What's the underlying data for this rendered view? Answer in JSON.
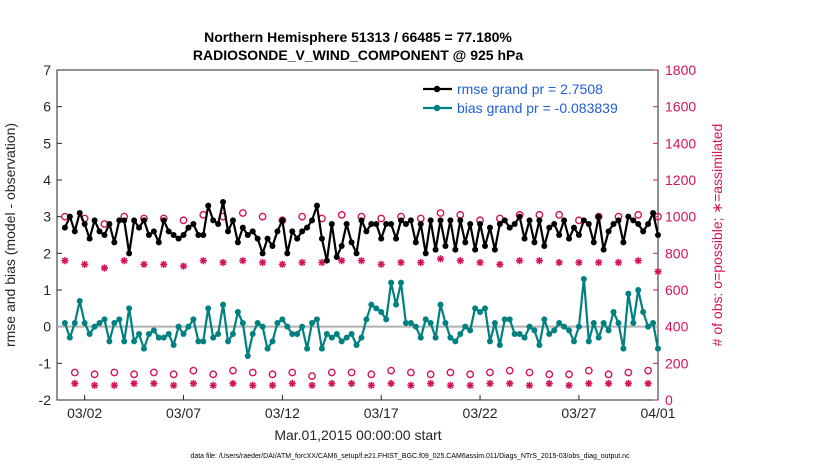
{
  "chart_data": {
    "type": "line",
    "title": "Northern Hemisphere 51313 / 66485 = 77.180%",
    "subtitle": "RADIOSONDE_V_WIND_COMPONENT @ 925 hPa",
    "xlabel": "Mar.01,2015 00:00:00 start",
    "ylabel_left": "rmse and bias (model - observation)",
    "ylabel_right": "# of obs: o=possible; ∗=assimilated",
    "footnote": "data file: /Users/raeder/DAI/ATM_forcXX/CAM6_setup/f.e21.FHIST_BGC.f09_025.CAM6assim.011/Diags_NTrS_2015-03/obs_diag_output.nc",
    "xlim": [
      0.6,
      31.0
    ],
    "ylim_left": [
      -2,
      7
    ],
    "ylim_right": [
      0,
      1800
    ],
    "yticks_left": [
      "-2",
      "-1",
      "0",
      "1",
      "2",
      "3",
      "4",
      "5",
      "6",
      "7"
    ],
    "yticks_right": [
      "0",
      "200",
      "400",
      "600",
      "800",
      "1000",
      "1200",
      "1400",
      "1600",
      "1800"
    ],
    "xticks": [
      {
        "pos": 2,
        "label": "03/02"
      },
      {
        "pos": 7,
        "label": "03/07"
      },
      {
        "pos": 12,
        "label": "03/12"
      },
      {
        "pos": 17,
        "label": "03/17"
      },
      {
        "pos": 22,
        "label": "03/22"
      },
      {
        "pos": 27,
        "label": "03/27"
      },
      {
        "pos": 32,
        "label": "04/01"
      }
    ],
    "reference_line": 0,
    "legend": [
      {
        "label": "rmse grand pr = 2.7508",
        "color": "#000000"
      },
      {
        "label": "bias grand pr = -0.083839",
        "color": "#008080"
      }
    ],
    "colors": {
      "rmse": "#000000",
      "bias": "#008080",
      "obs": "#d4145a",
      "zero": "#b0b0b0"
    },
    "series": [
      {
        "name": "rmse",
        "x_start": 1.0,
        "x_step": 0.25,
        "values": [
          2.7,
          3.0,
          2.6,
          3.1,
          2.8,
          2.4,
          2.9,
          2.6,
          2.5,
          2.8,
          2.3,
          2.9,
          2.9,
          2.0,
          2.9,
          2.7,
          2.9,
          2.5,
          2.6,
          2.3,
          2.9,
          2.6,
          2.5,
          2.4,
          2.5,
          2.7,
          2.8,
          2.5,
          2.5,
          3.3,
          2.9,
          2.8,
          3.4,
          2.6,
          2.9,
          2.3,
          2.7,
          2.5,
          2.6,
          2.4,
          2.0,
          2.4,
          2.2,
          2.6,
          2.9,
          2.0,
          2.6,
          2.4,
          2.6,
          2.7,
          2.9,
          3.3,
          2.4,
          1.8,
          2.8,
          1.9,
          2.2,
          2.8,
          2.3,
          2.0,
          2.9,
          2.6,
          2.8,
          2.8,
          2.4,
          2.8,
          2.8,
          2.4,
          2.9,
          2.8,
          2.9,
          2.3,
          2.8,
          2.0,
          2.9,
          2.1,
          2.9,
          2.2,
          2.9,
          2.1,
          2.9,
          2.3,
          2.8,
          2.1,
          2.8,
          2.2,
          2.7,
          2.1,
          2.8,
          2.9,
          2.7,
          2.8,
          3.0,
          2.4,
          2.9,
          2.3,
          2.9,
          2.2,
          2.7,
          2.8,
          2.5,
          2.9,
          2.4,
          2.7,
          2.5,
          2.9,
          2.8,
          2.3,
          3.0,
          2.1,
          2.6,
          2.8,
          2.9,
          2.3,
          3.0,
          2.9,
          2.8,
          2.6,
          2.8,
          3.1,
          2.5,
          2.6
        ]
      },
      {
        "name": "bias",
        "x_start": 1.0,
        "x_step": 0.25,
        "values": [
          0.1,
          -0.3,
          0.1,
          0.7,
          0.1,
          -0.2,
          0.0,
          0.1,
          0.2,
          -0.4,
          0.1,
          0.2,
          -0.4,
          0.5,
          -0.4,
          -0.2,
          -0.6,
          -0.2,
          -0.1,
          -0.3,
          -0.3,
          -0.2,
          -0.5,
          0.0,
          -0.2,
          0.0,
          0.2,
          -0.4,
          -0.4,
          0.5,
          -0.3,
          -0.2,
          0.6,
          -0.4,
          -0.2,
          0.4,
          0.1,
          -0.8,
          -0.2,
          0.1,
          0.0,
          -0.6,
          -0.4,
          0.1,
          0.2,
          0.0,
          -0.2,
          -0.2,
          0.0,
          -0.6,
          0.1,
          0.2,
          -0.6,
          -0.2,
          -0.3,
          -0.2,
          -0.4,
          -0.3,
          -0.2,
          -0.5,
          -0.3,
          0.2,
          0.6,
          0.5,
          0.4,
          0.2,
          1.2,
          0.6,
          1.2,
          0.1,
          0.1,
          0.0,
          -0.3,
          0.2,
          0.1,
          -0.3,
          0.6,
          0.1,
          -0.3,
          -0.4,
          -0.2,
          0.0,
          -0.1,
          0.5,
          0.4,
          0.5,
          -0.4,
          0.1,
          -0.5,
          0.2,
          0.2,
          -0.2,
          -0.2,
          -0.3,
          0.0,
          -0.1,
          -0.5,
          0.2,
          -0.2,
          -0.1,
          0.1,
          0.0,
          -0.1,
          -0.4,
          0.0,
          1.3,
          -0.4,
          0.1,
          -0.3,
          0.1,
          -0.1,
          0.4,
          0.1,
          -0.6,
          0.9,
          0.1,
          1.0,
          0.4,
          0.0,
          0.1,
          -0.6,
          -0.9
        ]
      },
      {
        "name": "obs_possible",
        "x_start": 1.0,
        "x_step": 0.5,
        "values": [
          1000,
          150,
          990,
          140,
          960,
          150,
          1000,
          140,
          990,
          150,
          990,
          140,
          980,
          160,
          1010,
          140,
          1000,
          160,
          1020,
          150,
          1000,
          140,
          980,
          150,
          1000,
          130,
          990,
          150,
          1010,
          150,
          1000,
          140,
          990,
          160,
          1000,
          150,
          990,
          140,
          1020,
          150,
          1010,
          140,
          980,
          150,
          990,
          160,
          1010,
          150,
          1010,
          140,
          1010,
          140,
          980,
          160,
          1000,
          140,
          1000,
          150,
          1010,
          160,
          1000,
          140
        ]
      },
      {
        "name": "obs_assimilated",
        "x_start": 1.0,
        "x_step": 0.5,
        "values": [
          760,
          90,
          740,
          80,
          720,
          80,
          760,
          90,
          740,
          90,
          740,
          80,
          730,
          90,
          760,
          80,
          750,
          90,
          760,
          80,
          750,
          80,
          740,
          90,
          750,
          80,
          750,
          90,
          760,
          90,
          760,
          80,
          740,
          90,
          750,
          80,
          750,
          90,
          770,
          80,
          760,
          80,
          750,
          90,
          740,
          90,
          760,
          80,
          760,
          90,
          750,
          80,
          750,
          90,
          750,
          90,
          750,
          90,
          760,
          90,
          700,
          50
        ]
      }
    ]
  }
}
